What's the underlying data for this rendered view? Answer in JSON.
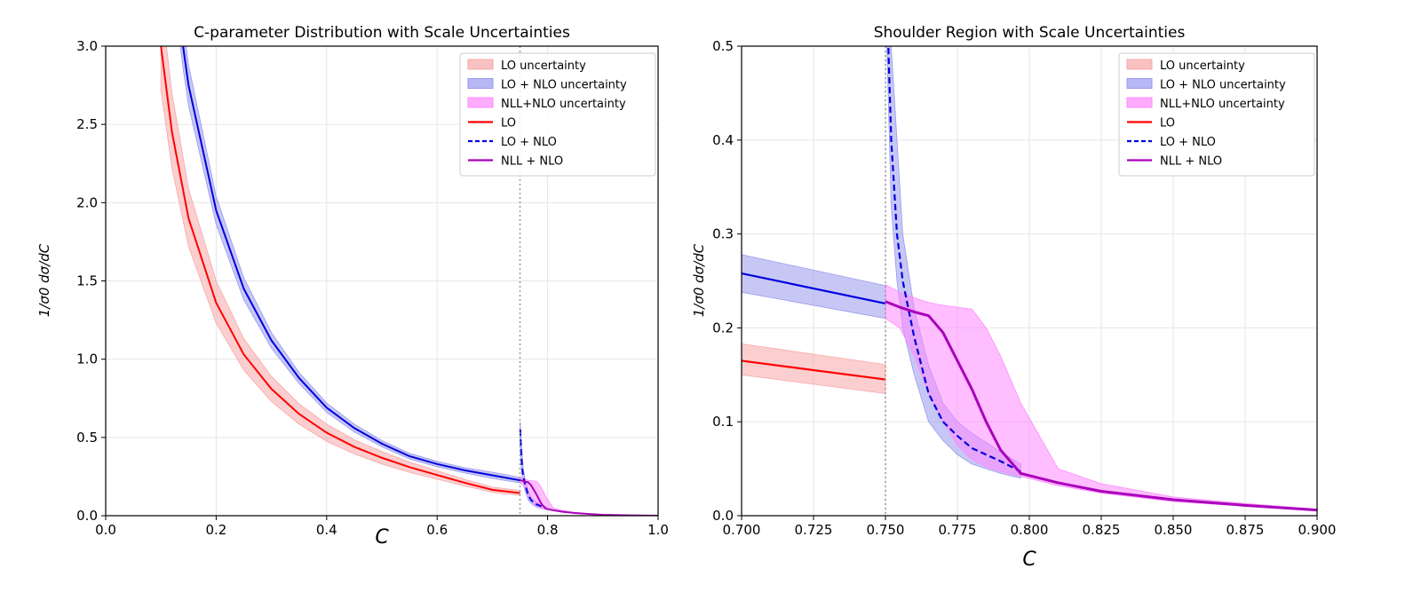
{
  "chart_data": [
    {
      "type": "line",
      "title": "C-parameter Distribution with Scale Uncertainties",
      "xlabel": "C",
      "ylabel": "1/σ0 dσ/dC",
      "xlim": [
        0.0,
        1.0
      ],
      "ylim": [
        0.0,
        3.0
      ],
      "xticks": [
        "0.0",
        "0.2",
        "0.4",
        "0.6",
        "0.8",
        "1.0"
      ],
      "yticks": [
        "0.0",
        "0.5",
        "1.0",
        "1.5",
        "2.0",
        "2.5",
        "3.0"
      ],
      "grid": true,
      "legend_position": "top-right",
      "vline": 0.75
    },
    {
      "type": "line",
      "title": "Shoulder Region with Scale Uncertainties",
      "xlabel": "C",
      "ylabel": "1/σ0 dσ/dC",
      "xlim": [
        0.7,
        0.9
      ],
      "ylim": [
        0.0,
        0.5
      ],
      "xticks": [
        "0.700",
        "0.725",
        "0.750",
        "0.775",
        "0.800",
        "0.825",
        "0.850",
        "0.875",
        "0.900"
      ],
      "yticks": [
        "0.0",
        "0.1",
        "0.2",
        "0.3",
        "0.4",
        "0.5"
      ],
      "grid": true,
      "legend_position": "top-right",
      "vline": 0.75
    }
  ],
  "legend": [
    "LO uncertainty",
    "LO + NLO uncertainty",
    "NLL+NLO uncertainty",
    "LO",
    "LO + NLO",
    "NLL + NLO"
  ],
  "colors": {
    "LO": "#ff0000",
    "LO_band": "#f7a8a8",
    "LONLO": "#0000dd",
    "LONLO_band": "#9999ee",
    "NLL": "#aa00bb",
    "NLL_band": "#ff88ff"
  },
  "series": {
    "LO": {
      "name": "LO",
      "x": [
        0.1,
        0.12,
        0.15,
        0.2,
        0.25,
        0.3,
        0.35,
        0.4,
        0.45,
        0.5,
        0.55,
        0.6,
        0.65,
        0.7,
        0.75
      ],
      "y": [
        3.0,
        2.45,
        1.9,
        1.36,
        1.03,
        0.81,
        0.65,
        0.53,
        0.44,
        0.37,
        0.31,
        0.26,
        0.21,
        0.165,
        0.145
      ],
      "lower": [
        2.72,
        2.22,
        1.72,
        1.23,
        0.93,
        0.73,
        0.585,
        0.475,
        0.395,
        0.33,
        0.277,
        0.233,
        0.19,
        0.15,
        0.13
      ],
      "upper": [
        3.3,
        2.7,
        2.09,
        1.5,
        1.13,
        0.89,
        0.715,
        0.585,
        0.485,
        0.41,
        0.343,
        0.287,
        0.232,
        0.183,
        0.161
      ]
    },
    "LONLO": {
      "name": "LO + NLO",
      "x": [
        0.13,
        0.14,
        0.15,
        0.2,
        0.25,
        0.3,
        0.35,
        0.4,
        0.45,
        0.5,
        0.55,
        0.6,
        0.65,
        0.7,
        0.75
      ],
      "y": [
        3.3,
        3.0,
        2.75,
        1.95,
        1.45,
        1.12,
        0.88,
        0.69,
        0.56,
        0.46,
        0.38,
        0.33,
        0.29,
        0.258,
        0.226
      ],
      "lower": [
        3.15,
        2.86,
        2.62,
        1.86,
        1.38,
        1.07,
        0.845,
        0.66,
        0.535,
        0.44,
        0.362,
        0.313,
        0.273,
        0.238,
        0.21
      ],
      "upper": [
        3.45,
        3.14,
        2.88,
        2.04,
        1.52,
        1.17,
        0.915,
        0.72,
        0.585,
        0.48,
        0.398,
        0.347,
        0.307,
        0.278,
        0.245
      ],
      "x_above": [
        0.7505,
        0.752,
        0.754,
        0.756,
        0.76,
        0.765,
        0.77,
        0.775,
        0.78,
        0.79,
        0.797
      ],
      "y_above": [
        0.55,
        0.4,
        0.3,
        0.25,
        0.19,
        0.13,
        0.1,
        0.085,
        0.072,
        0.058,
        0.047
      ],
      "lower_above": [
        0.5,
        0.33,
        0.25,
        0.2,
        0.15,
        0.1,
        0.08,
        0.065,
        0.055,
        0.045,
        0.04
      ],
      "upper_above": [
        0.6,
        0.5,
        0.4,
        0.3,
        0.22,
        0.16,
        0.12,
        0.1,
        0.088,
        0.068,
        0.055
      ]
    },
    "NLL": {
      "name": "NLL + NLO",
      "x": [
        0.75,
        0.755,
        0.76,
        0.765,
        0.77,
        0.775,
        0.78,
        0.785,
        0.79,
        0.797,
        0.81,
        0.825,
        0.85,
        0.875,
        0.9,
        0.95,
        1.0
      ],
      "y": [
        0.228,
        0.222,
        0.217,
        0.213,
        0.195,
        0.165,
        0.135,
        0.1,
        0.07,
        0.045,
        0.035,
        0.026,
        0.017,
        0.011,
        0.006,
        0.002,
        0.0
      ],
      "lower": [
        0.21,
        0.2,
        0.17,
        0.13,
        0.1,
        0.075,
        0.06,
        0.052,
        0.047,
        0.042,
        0.032,
        0.024,
        0.015,
        0.01,
        0.005,
        0.0015,
        0.0
      ],
      "upper": [
        0.246,
        0.238,
        0.232,
        0.227,
        0.224,
        0.222,
        0.22,
        0.2,
        0.17,
        0.12,
        0.05,
        0.034,
        0.02,
        0.013,
        0.007,
        0.0025,
        0.0
      ]
    }
  }
}
